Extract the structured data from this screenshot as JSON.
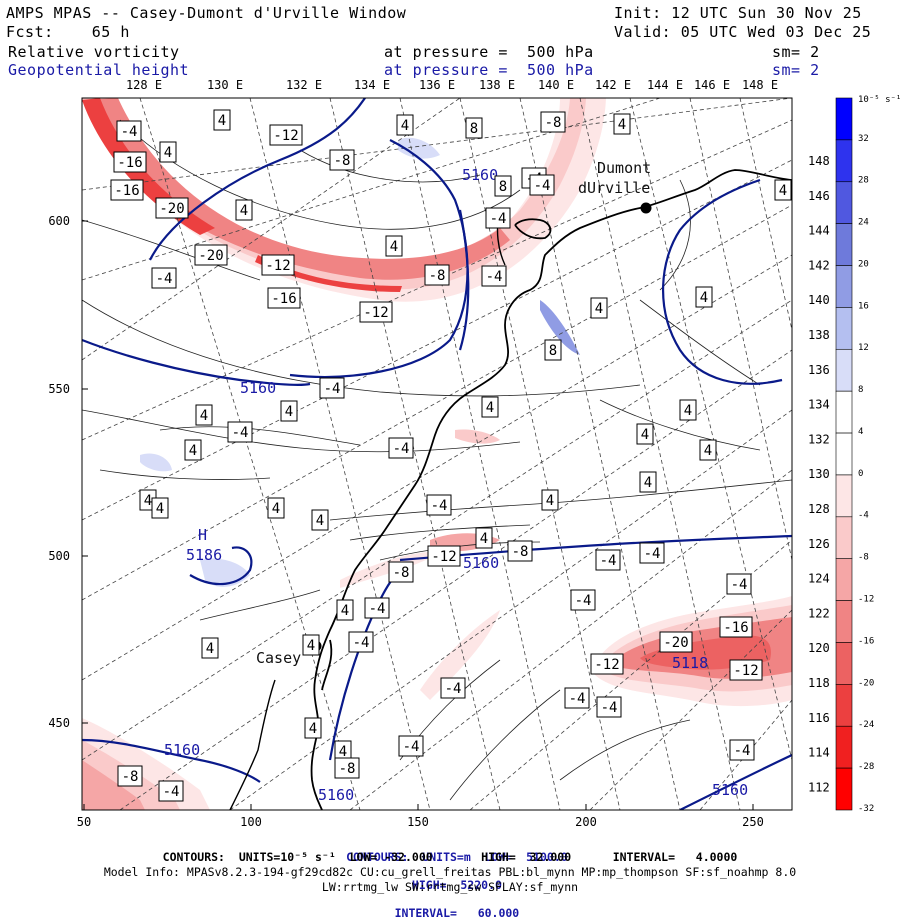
{
  "header": {
    "title": "AMPS MPAS -- Casey-Dumont d'Urville Window",
    "init": "Init: 12 UTC Sun 30 Nov 25",
    "fcst": "Fcst:    65 h",
    "valid": "Valid: 05 UTC Wed 03 Dec 25",
    "field1_name": "Relative vorticity",
    "field1_level": "at pressure =  500 hPa",
    "field1_sm": "sm= 2",
    "field2_name": "Geopotential height",
    "field2_level": "at pressure =  500 hPa",
    "field2_sm": "sm= 2"
  },
  "axes": {
    "top_lon_labels": [
      "128 E",
      "130 E",
      "132 E",
      "134 E",
      "136 E",
      "138 E",
      "140 E",
      "142 E",
      "144 E",
      "146 E",
      "148 E"
    ],
    "right_lon_labels": [
      "148 E",
      "146 E",
      "144 E",
      "142 E",
      "140 E",
      "138 E",
      "136 E",
      "134 E",
      "132 E",
      "130 E",
      "128 E",
      "126 E",
      "124 E",
      "122 E",
      "120 E",
      "118 E",
      "116 E",
      "114 E",
      "112 E"
    ],
    "left_ticks": [
      "600",
      "550",
      "500",
      "450"
    ],
    "bottom_ticks": [
      "50",
      "100",
      "150",
      "200",
      "250"
    ]
  },
  "colorbar": {
    "units": "10⁻⁵ s⁻¹",
    "labels": [
      "32",
      "28",
      "24",
      "20",
      "16",
      "12",
      "8",
      "4",
      "0",
      "-4",
      "-8",
      "-12",
      "-16",
      "-20",
      "-24",
      "-28",
      "-32"
    ],
    "colors": [
      "#0000ff",
      "#2e33ee",
      "#5058e0",
      "#6e7adb",
      "#909ce4",
      "#b4bff0",
      "#d8ddf8",
      "#ffffff",
      "#ffffff",
      "#fde6e6",
      "#facaca",
      "#f5a6a6",
      "#f08484",
      "#ec6262",
      "#ec4040",
      "#f02020",
      "#ff0000"
    ]
  },
  "map": {
    "places": [
      {
        "name": "Dumont\ndUrville",
        "label_lines": [
          "Dumont",
          "dUrville"
        ]
      },
      {
        "name": "Casey",
        "label_lines": [
          "Casey"
        ]
      }
    ],
    "height_labels": [
      "5160",
      "5160",
      "5160",
      "5160",
      "5160",
      "5160",
      "5118"
    ],
    "high_label": {
      "letter": "H",
      "value": "5186"
    },
    "vort_labels": [
      "-4",
      "4",
      "-12",
      "-8",
      "4",
      "-16",
      "4",
      "4",
      "8",
      "-8",
      "-4",
      "-4",
      "4",
      "-20",
      "4",
      "8",
      "-20",
      "-12",
      "-4",
      "-4",
      "-8",
      "-4",
      "4",
      "-16",
      "-16",
      "-12",
      "4",
      "8",
      "-4",
      "4",
      "4",
      "4",
      "4",
      "4",
      "-4",
      "4",
      "-4",
      "-4",
      "4",
      "4",
      "4",
      "4",
      "4",
      "-4",
      "4",
      "4",
      "4",
      "-4",
      "-12",
      "-8",
      "-4",
      "-8",
      "4",
      "-4",
      "4",
      "-4",
      "-4",
      "-12",
      "-20",
      "-16",
      "-12",
      "4",
      "-4",
      "-4",
      "4",
      "-4",
      "-8",
      "-4",
      "-4",
      "-4",
      "4",
      "-8",
      "4",
      "4"
    ]
  },
  "footer": {
    "line1_label": "CONTOURS:  UNITS=m  LOW=  5100.0",
    "line1_high": "HIGH=  5220.0",
    "line1_interval": "INTERVAL=   60.000",
    "line2": "CONTOURS:  UNITS=10⁻⁵ s⁻¹  LOW= -32.000       HIGH=  32.000      INTERVAL=   4.0000",
    "line3": "Model Info: MPASv8.2.3-194-gf29cd82c CU:cu_grell_freitas PBL:bl_mynn MP:mp_thompson SF:sf_noahmp 8.0",
    "line4": "LW:rrtmg_lw SW:rrtmg_sw SFLAY:sf_mynn"
  },
  "colors": {
    "height_contour": "#0a1a8a",
    "coast": "#000000",
    "grid": "#444444",
    "vort_neg_strong": "#ec4040",
    "vort_neg_weak": "#f8c8c8",
    "vort_pos_weak": "#d8ddf8"
  }
}
